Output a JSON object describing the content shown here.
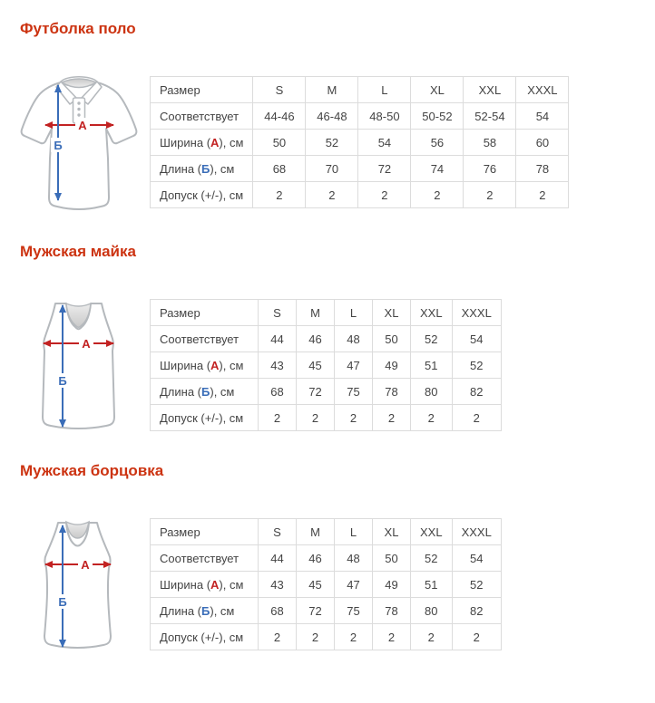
{
  "colors": {
    "heading": "#cc3311",
    "text": "#444444",
    "table_border": "#dcdcdc",
    "garment_outline": "#b5b9bd",
    "dim_a": "#c22222",
    "dim_b": "#3a6db8"
  },
  "sections": [
    {
      "title": "Футболка поло",
      "figure": {
        "name": "polo-shirt",
        "width_label": "А",
        "length_label": "Б"
      },
      "table": {
        "header": [
          "Размер",
          "S",
          "M",
          "L",
          "XL",
          "XXL",
          "XXXL"
        ],
        "rows": [
          {
            "pre": "Соответствует",
            "em": "",
            "em_color": "",
            "post": "",
            "values": [
              "44-46",
              "46-48",
              "48-50",
              "50-52",
              "52-54",
              "54"
            ]
          },
          {
            "pre": "Ширина (",
            "em": "А",
            "em_color": "dim_a",
            "post": "), см",
            "values": [
              "50",
              "52",
              "54",
              "56",
              "58",
              "60"
            ]
          },
          {
            "pre": "Длина (",
            "em": "Б",
            "em_color": "dim_b",
            "post": "), см",
            "values": [
              "68",
              "70",
              "72",
              "74",
              "76",
              "78"
            ]
          },
          {
            "pre": "Допуск (+/-), см",
            "em": "",
            "em_color": "",
            "post": "",
            "values": [
              "2",
              "2",
              "2",
              "2",
              "2",
              "2"
            ]
          }
        ]
      }
    },
    {
      "title": "Мужская майка",
      "figure": {
        "name": "tank-top",
        "width_label": "А",
        "length_label": "Б"
      },
      "table": {
        "header": [
          "Размер",
          "S",
          "M",
          "L",
          "XL",
          "XXL",
          "XXXL"
        ],
        "rows": [
          {
            "pre": "Соответствует",
            "em": "",
            "em_color": "",
            "post": "",
            "values": [
              "44",
              "46",
              "48",
              "50",
              "52",
              "54"
            ]
          },
          {
            "pre": "Ширина (",
            "em": "А",
            "em_color": "dim_a",
            "post": "), см",
            "values": [
              "43",
              "45",
              "47",
              "49",
              "51",
              "52"
            ]
          },
          {
            "pre": "Длина (",
            "em": "Б",
            "em_color": "dim_b",
            "post": "), см",
            "values": [
              "68",
              "72",
              "75",
              "78",
              "80",
              "82"
            ]
          },
          {
            "pre": "Допуск (+/-), см",
            "em": "",
            "em_color": "",
            "post": "",
            "values": [
              "2",
              "2",
              "2",
              "2",
              "2",
              "2"
            ]
          }
        ]
      }
    },
    {
      "title": "Мужская борцовка",
      "figure": {
        "name": "racerback-tank",
        "width_label": "А",
        "length_label": "Б"
      },
      "table": {
        "header": [
          "Размер",
          "S",
          "M",
          "L",
          "XL",
          "XXL",
          "XXXL"
        ],
        "rows": [
          {
            "pre": "Соответствует",
            "em": "",
            "em_color": "",
            "post": "",
            "values": [
              "44",
              "46",
              "48",
              "50",
              "52",
              "54"
            ]
          },
          {
            "pre": "Ширина (",
            "em": "А",
            "em_color": "dim_a",
            "post": "), см",
            "values": [
              "43",
              "45",
              "47",
              "49",
              "51",
              "52"
            ]
          },
          {
            "pre": "Длина (",
            "em": "Б",
            "em_color": "dim_b",
            "post": "), см",
            "values": [
              "68",
              "72",
              "75",
              "78",
              "80",
              "82"
            ]
          },
          {
            "pre": "Допуск (+/-), см",
            "em": "",
            "em_color": "",
            "post": "",
            "values": [
              "2",
              "2",
              "2",
              "2",
              "2",
              "2"
            ]
          }
        ]
      }
    }
  ]
}
